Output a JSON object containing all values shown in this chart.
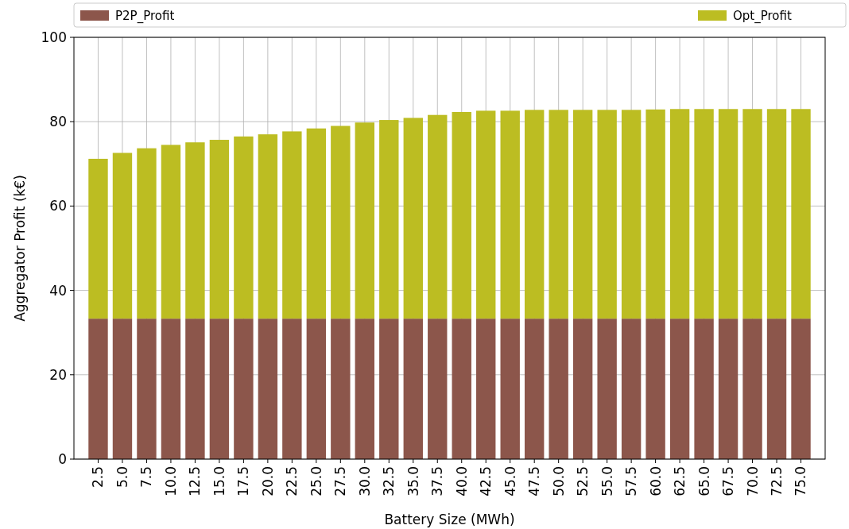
{
  "chart_data": {
    "type": "bar",
    "stacked": true,
    "xlabel": "Battery Size (MWh)",
    "ylabel": "Aggregator Profit (k€)",
    "categories": [
      "2.5",
      "5.0",
      "7.5",
      "10.0",
      "12.5",
      "15.0",
      "17.5",
      "20.0",
      "22.5",
      "25.0",
      "27.5",
      "30.0",
      "32.5",
      "35.0",
      "37.5",
      "40.0",
      "42.5",
      "45.0",
      "47.5",
      "50.0",
      "52.5",
      "55.0",
      "57.5",
      "60.0",
      "62.5",
      "65.0",
      "67.5",
      "70.0",
      "72.5",
      "75.0"
    ],
    "series": [
      {
        "name": "P2P_Profit",
        "color": "#8c564b",
        "values": [
          33.3,
          33.3,
          33.3,
          33.3,
          33.3,
          33.3,
          33.3,
          33.3,
          33.3,
          33.3,
          33.3,
          33.3,
          33.3,
          33.3,
          33.3,
          33.3,
          33.3,
          33.3,
          33.3,
          33.3,
          33.3,
          33.3,
          33.3,
          33.3,
          33.3,
          33.3,
          33.3,
          33.3,
          33.3,
          33.3
        ]
      },
      {
        "name": "Opt_Profit",
        "color": "#bcbd22",
        "values": [
          37.9,
          39.3,
          40.4,
          41.2,
          41.8,
          42.4,
          43.2,
          43.7,
          44.4,
          45.1,
          45.7,
          46.5,
          47.1,
          47.6,
          48.3,
          49.0,
          49.3,
          49.3,
          49.5,
          49.5,
          49.5,
          49.5,
          49.5,
          49.6,
          49.7,
          49.7,
          49.7,
          49.7,
          49.7,
          49.7
        ]
      }
    ],
    "ylim": [
      0,
      100
    ],
    "yticks": [
      0,
      20,
      40,
      60,
      80,
      100
    ],
    "grid": true,
    "legend": "top"
  }
}
